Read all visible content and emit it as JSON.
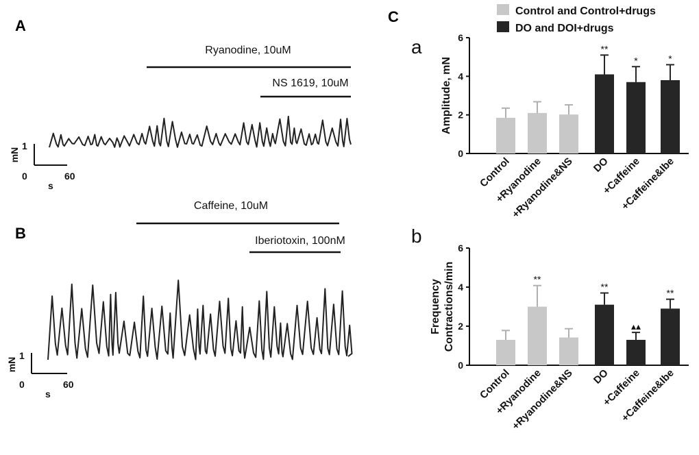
{
  "colors": {
    "control": "#c8c8c8",
    "doi": "#262626",
    "ink": "#111111"
  },
  "panels": {
    "A": {
      "letter": "A",
      "drugs": [
        "Ryanodine, 10uM",
        "NS 1619, 10uM"
      ],
      "scale": {
        "y_label": "mN",
        "y_value": "1",
        "x_zero": "0",
        "x_unit": "s",
        "x_value": "60"
      }
    },
    "B": {
      "letter": "B",
      "drugs": [
        "Caffeine, 10uM",
        "Iberiotoxin, 100nM"
      ],
      "scale": {
        "y_label": "mN",
        "y_value": "1",
        "x_zero": "0",
        "x_unit": "s",
        "x_value": "60"
      }
    },
    "C": {
      "letter": "C"
    }
  },
  "chart_data": [
    {
      "type": "bar",
      "subpanel": "a",
      "ylabel": "Amplitude, mN",
      "ylim": [
        0,
        6
      ],
      "yticks": [
        "0",
        "2",
        "4",
        "6"
      ],
      "categories": [
        "Control",
        "+Ryanodine",
        "+Ryanodine&NS",
        "DO",
        "+Caffeine",
        "+Caffeine&Ibe"
      ],
      "series": [
        {
          "name": "Control and Control+drugs",
          "color": "#c8c8c8",
          "values": [
            1.85,
            2.1,
            2.02,
            null,
            null,
            null
          ],
          "errors": [
            0.5,
            0.58,
            0.5,
            null,
            null,
            null
          ]
        },
        {
          "name": "DO and DOI+drugs",
          "color": "#262626",
          "values": [
            null,
            null,
            null,
            4.1,
            3.7,
            3.8
          ],
          "errors": [
            null,
            null,
            null,
            1.0,
            0.8,
            0.8
          ]
        }
      ],
      "annotations": [
        "",
        "",
        "",
        "**",
        "*",
        "*"
      ]
    },
    {
      "type": "bar",
      "subpanel": "b",
      "ylabel": "Frequency",
      "ylabel2": "Contractions/min",
      "ylim": [
        0,
        6
      ],
      "yticks": [
        "0",
        "2",
        "4",
        "6"
      ],
      "categories": [
        "Control",
        "+Ryanodine",
        "+Ryanodine&NS",
        "DO",
        "+Caffeine",
        "+Caffeine&Ibe"
      ],
      "series": [
        {
          "name": "Control and Control+drugs",
          "color": "#c8c8c8",
          "values": [
            1.3,
            3.0,
            1.42,
            null,
            null,
            null
          ],
          "errors": [
            0.48,
            1.08,
            0.45,
            null,
            null,
            null
          ]
        },
        {
          "name": "DO and DOI+drugs",
          "color": "#262626",
          "values": [
            null,
            null,
            null,
            3.1,
            1.3,
            2.9
          ],
          "errors": [
            null,
            null,
            null,
            0.6,
            0.38,
            0.48
          ]
        }
      ],
      "annotations": [
        "",
        "**",
        "",
        "**",
        "▴▴",
        "**"
      ]
    }
  ],
  "legend": [
    {
      "label": "Control and Control+drugs",
      "color": "#c8c8c8"
    },
    {
      "label": "DO and DOI+drugs",
      "color": "#262626"
    }
  ]
}
